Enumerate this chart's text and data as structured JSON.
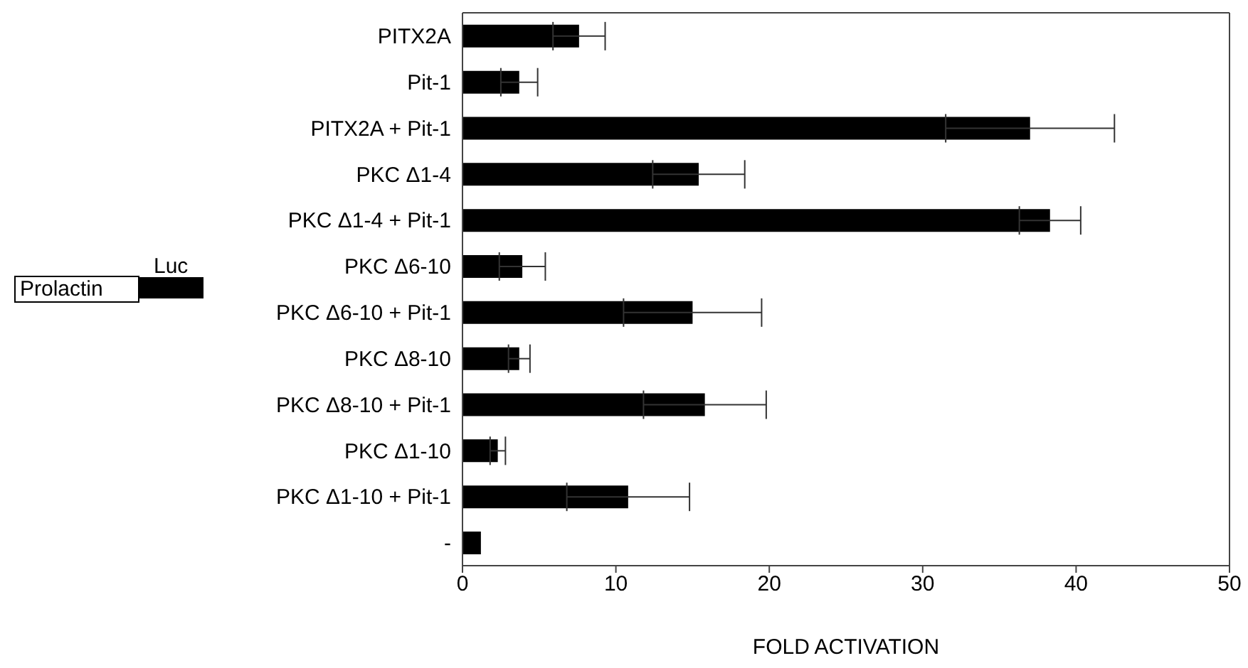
{
  "chart_data": {
    "type": "bar",
    "orientation": "horizontal",
    "xlabel": "FOLD ACTIVATION",
    "categories": [
      "PITX2A",
      "Pit-1",
      "PITX2A + Pit-1",
      "PKC Δ1-4",
      "PKC Δ1-4 + Pit-1",
      "PKC Δ6-10",
      "PKC Δ6-10 + Pit-1",
      "PKC Δ8-10",
      "PKC Δ8-10 + Pit-1",
      "PKC Δ1-10",
      "PKC Δ1-10 + Pit-1",
      "-"
    ],
    "values": [
      7.6,
      3.7,
      37.0,
      15.4,
      38.3,
      3.9,
      15.0,
      3.7,
      15.8,
      2.3,
      10.8,
      1.2
    ],
    "errors": [
      1.7,
      1.2,
      5.5,
      3.0,
      2.0,
      1.5,
      4.5,
      0.7,
      4.0,
      0.5,
      4.0,
      null
    ],
    "color": "#000000",
    "xlim": [
      0,
      50
    ],
    "xticks": [
      0,
      10,
      20,
      30,
      40,
      50
    ],
    "grid": false,
    "legend": false,
    "annotations": [
      "Prolactin",
      "Luc"
    ]
  }
}
